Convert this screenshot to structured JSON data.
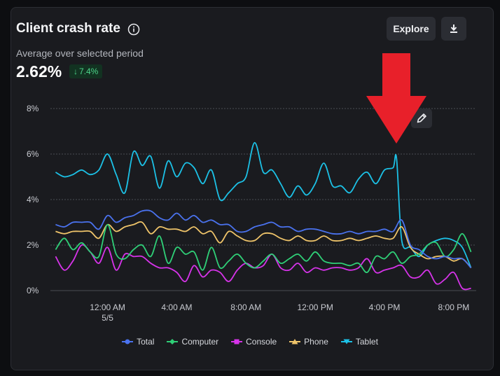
{
  "header": {
    "title": "Client crash rate",
    "subtitle": "Average over selected period",
    "value": "2.62%",
    "delta": "7.4%"
  },
  "buttons": {
    "explore_label": "Explore",
    "download_icon": "download-icon",
    "edit_icon": "pencil-icon"
  },
  "annotation": {
    "type": "arrow",
    "color": "#e8202a",
    "points_to_x": "4:30 PM"
  },
  "chart_data": {
    "type": "line",
    "title": "Client crash rate",
    "xlabel": "",
    "ylabel": "",
    "ylim": [
      0,
      8
    ],
    "xlim": [
      -3.3,
      21.3
    ],
    "x_unit": "hours since 12:00 AM 5/5",
    "yticks": [
      {
        "value": 0,
        "label": "0%"
      },
      {
        "value": 2,
        "label": "2%"
      },
      {
        "value": 4,
        "label": "4%"
      },
      {
        "value": 6,
        "label": "6%"
      },
      {
        "value": 8,
        "label": "8%"
      }
    ],
    "xticks": [
      {
        "value": 0,
        "label": "12:00 AM",
        "sublabel": "5/5"
      },
      {
        "value": 4,
        "label": "4:00 AM",
        "sublabel": ""
      },
      {
        "value": 8,
        "label": "8:00 AM",
        "sublabel": ""
      },
      {
        "value": 12,
        "label": "12:00 PM",
        "sublabel": ""
      },
      {
        "value": 16,
        "label": "4:00 PM",
        "sublabel": ""
      },
      {
        "value": 20,
        "label": "8:00 PM",
        "sublabel": ""
      }
    ],
    "grid": true,
    "legend_position": "bottom-center",
    "series": [
      {
        "name": "Total",
        "color": "#4a72ee",
        "marker": "circle",
        "x": [
          -3.0,
          -2.5,
          -2.0,
          -1.5,
          -1.0,
          -0.5,
          0.0,
          0.5,
          1.0,
          1.5,
          2.0,
          2.5,
          3.0,
          3.5,
          4.0,
          4.5,
          5.0,
          5.5,
          6.0,
          6.5,
          7.0,
          7.5,
          8.0,
          8.5,
          9.0,
          9.5,
          10.0,
          10.5,
          11.0,
          11.5,
          12.0,
          12.5,
          13.0,
          13.5,
          14.0,
          14.5,
          15.0,
          15.5,
          16.0,
          16.5,
          17.0,
          17.5,
          18.0,
          18.5,
          19.0,
          19.5,
          20.0,
          20.5,
          21.0
        ],
        "y": [
          2.9,
          2.8,
          3.0,
          3.0,
          3.0,
          2.7,
          3.3,
          3.0,
          3.2,
          3.3,
          3.5,
          3.5,
          3.2,
          3.1,
          3.4,
          3.1,
          3.3,
          3.0,
          3.1,
          2.9,
          2.9,
          2.6,
          2.6,
          2.8,
          2.9,
          3.0,
          2.8,
          2.8,
          2.6,
          2.7,
          2.7,
          2.6,
          2.5,
          2.5,
          2.6,
          2.5,
          2.6,
          2.6,
          2.7,
          2.6,
          3.1,
          2.0,
          1.8,
          1.5,
          1.4,
          1.5,
          1.4,
          1.4,
          1.0
        ]
      },
      {
        "name": "Computer",
        "color": "#2fcf77",
        "marker": "diamond",
        "x": [
          -3.0,
          -2.5,
          -2.0,
          -1.5,
          -1.0,
          -0.5,
          0.0,
          0.5,
          1.0,
          1.5,
          2.0,
          2.5,
          3.0,
          3.5,
          4.0,
          4.5,
          5.0,
          5.5,
          6.0,
          6.5,
          7.0,
          7.5,
          8.0,
          8.5,
          9.0,
          9.5,
          10.0,
          10.5,
          11.0,
          11.5,
          12.0,
          12.5,
          13.0,
          13.5,
          14.0,
          14.5,
          15.0,
          15.5,
          16.0,
          16.5,
          17.0,
          17.5,
          18.0,
          18.5,
          19.0,
          19.5,
          20.0,
          20.5,
          21.0
        ],
        "y": [
          1.8,
          2.3,
          1.8,
          2.1,
          1.7,
          1.5,
          2.9,
          1.6,
          1.4,
          1.8,
          2.0,
          1.5,
          2.4,
          1.2,
          1.9,
          1.6,
          1.7,
          0.9,
          1.9,
          1.0,
          1.3,
          1.6,
          1.2,
          1.0,
          1.3,
          1.6,
          1.2,
          1.4,
          1.6,
          1.3,
          1.7,
          1.3,
          1.2,
          1.2,
          1.1,
          1.2,
          0.8,
          1.5,
          1.4,
          1.7,
          1.2,
          1.5,
          1.6,
          2.0,
          2.1,
          1.5,
          1.8,
          2.5,
          1.7
        ]
      },
      {
        "name": "Console",
        "color": "#d633e9",
        "marker": "square",
        "x": [
          -3.0,
          -2.5,
          -2.0,
          -1.5,
          -1.0,
          -0.5,
          0.0,
          0.5,
          1.0,
          1.5,
          2.0,
          2.5,
          3.0,
          3.5,
          4.0,
          4.5,
          5.0,
          5.5,
          6.0,
          6.5,
          7.0,
          7.5,
          8.0,
          8.5,
          9.0,
          9.5,
          10.0,
          10.5,
          11.0,
          11.5,
          12.0,
          12.5,
          13.0,
          13.5,
          14.0,
          14.5,
          15.0,
          15.5,
          16.0,
          16.5,
          17.0,
          17.5,
          18.0,
          18.5,
          19.0,
          19.5,
          20.0,
          20.5,
          21.0
        ],
        "y": [
          1.5,
          0.9,
          1.3,
          2.0,
          1.7,
          1.2,
          1.9,
          0.9,
          1.6,
          1.5,
          1.5,
          1.2,
          1.0,
          1.0,
          0.8,
          0.4,
          1.1,
          0.6,
          0.9,
          0.8,
          0.4,
          0.9,
          1.2,
          1.0,
          1.1,
          1.6,
          1.0,
          0.9,
          1.2,
          0.8,
          1.0,
          0.9,
          1.0,
          1.0,
          0.9,
          1.0,
          1.4,
          0.8,
          0.9,
          1.0,
          1.1,
          0.6,
          0.6,
          0.9,
          0.3,
          0.5,
          0.8,
          0.1,
          0.1
        ]
      },
      {
        "name": "Phone",
        "color": "#efc46a",
        "marker": "triangle",
        "x": [
          -3.0,
          -2.5,
          -2.0,
          -1.5,
          -1.0,
          -0.5,
          0.0,
          0.5,
          1.0,
          1.5,
          2.0,
          2.5,
          3.0,
          3.5,
          4.0,
          4.5,
          5.0,
          5.5,
          6.0,
          6.5,
          7.0,
          7.5,
          8.0,
          8.5,
          9.0,
          9.5,
          10.0,
          10.5,
          11.0,
          11.5,
          12.0,
          12.5,
          13.0,
          13.5,
          14.0,
          14.5,
          15.0,
          15.5,
          16.0,
          16.5,
          17.0,
          17.5,
          18.0,
          18.5,
          19.0,
          19.5,
          20.0,
          20.5,
          21.0
        ],
        "y": [
          2.6,
          2.5,
          2.6,
          2.6,
          2.6,
          2.3,
          2.9,
          2.6,
          2.8,
          2.9,
          3.0,
          2.5,
          2.8,
          2.7,
          2.7,
          2.6,
          2.8,
          2.5,
          2.6,
          2.1,
          2.6,
          2.4,
          2.2,
          2.2,
          2.5,
          2.5,
          2.3,
          2.2,
          2.4,
          2.2,
          2.2,
          2.4,
          2.2,
          2.2,
          2.3,
          2.2,
          2.3,
          2.4,
          2.3,
          2.3,
          2.8,
          1.9,
          1.6,
          1.4,
          1.5,
          1.5,
          1.3,
          1.4,
          1.0
        ]
      },
      {
        "name": "Tablet",
        "color": "#1cc1e6",
        "marker": "t-bar",
        "x": [
          -3.0,
          -2.5,
          -2.0,
          -1.5,
          -1.0,
          -0.5,
          0.0,
          0.5,
          1.0,
          1.5,
          2.0,
          2.5,
          3.0,
          3.5,
          4.0,
          4.5,
          5.0,
          5.5,
          6.0,
          6.5,
          7.0,
          7.5,
          8.0,
          8.5,
          9.0,
          9.5,
          10.0,
          10.5,
          11.0,
          11.5,
          12.0,
          12.5,
          13.0,
          13.5,
          14.0,
          14.5,
          15.0,
          15.5,
          16.0,
          16.5,
          16.7,
          17.0,
          17.5,
          18.0,
          18.5,
          19.0,
          19.5,
          20.0,
          20.5,
          21.0
        ],
        "y": [
          5.2,
          5.0,
          5.1,
          5.3,
          5.1,
          5.3,
          6.0,
          5.1,
          4.3,
          6.1,
          5.5,
          5.9,
          4.5,
          5.7,
          5.0,
          5.6,
          5.4,
          4.7,
          5.3,
          4.0,
          4.3,
          4.7,
          5.0,
          6.5,
          5.2,
          5.3,
          4.7,
          4.1,
          4.6,
          4.2,
          4.7,
          5.6,
          4.6,
          4.6,
          4.3,
          4.9,
          5.2,
          4.7,
          5.3,
          5.4,
          5.8,
          2.2,
          1.9,
          1.5,
          2.0,
          2.2,
          2.3,
          2.2,
          1.9,
          1.0
        ]
      }
    ]
  }
}
